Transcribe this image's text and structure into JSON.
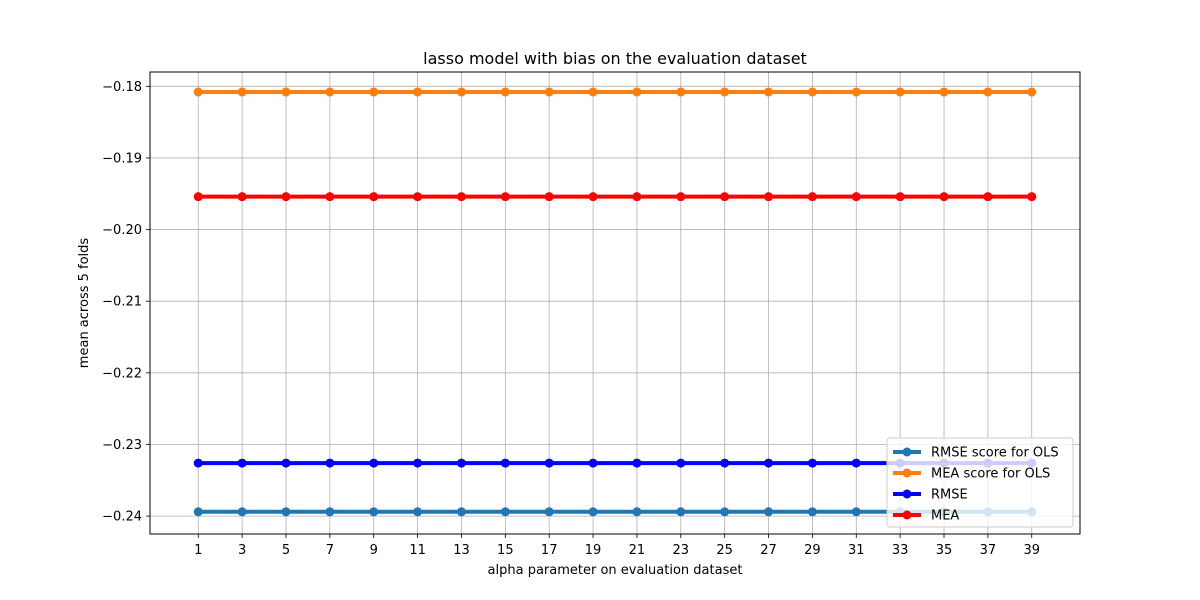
{
  "chart_data": {
    "type": "line",
    "title": "lasso model with bias on the evaluation dataset",
    "xlabel": "alpha parameter on evaluation dataset",
    "ylabel": "mean across 5 folds",
    "x": [
      1,
      3,
      5,
      7,
      9,
      11,
      13,
      15,
      17,
      19,
      21,
      23,
      25,
      27,
      29,
      31,
      33,
      35,
      37,
      39
    ],
    "x_ticks": [
      "1",
      "3",
      "5",
      "7",
      "9",
      "11",
      "13",
      "15",
      "17",
      "19",
      "21",
      "23",
      "25",
      "27",
      "29",
      "31",
      "33",
      "35",
      "37",
      "39"
    ],
    "ylim": [
      -0.2425,
      -0.178
    ],
    "y_ticks": [
      -0.18,
      -0.19,
      -0.2,
      -0.21,
      -0.22,
      -0.23,
      -0.24
    ],
    "y_tick_labels": [
      "−0.18",
      "−0.19",
      "−0.20",
      "−0.21",
      "−0.22",
      "−0.23",
      "−0.24"
    ],
    "grid": true,
    "legend_position": "bottom-right",
    "series": [
      {
        "name": "RMSE score for OLS",
        "color": "#1f77b4",
        "values": [
          -0.2394,
          -0.2394,
          -0.2394,
          -0.2394,
          -0.2394,
          -0.2394,
          -0.2394,
          -0.2394,
          -0.2394,
          -0.2394,
          -0.2394,
          -0.2394,
          -0.2394,
          -0.2394,
          -0.2394,
          -0.2394,
          -0.2394,
          -0.2394,
          -0.2394,
          -0.2394
        ]
      },
      {
        "name": "MEA score for OLS",
        "color": "#ff7f0e",
        "values": [
          -0.1808,
          -0.1808,
          -0.1808,
          -0.1808,
          -0.1808,
          -0.1808,
          -0.1808,
          -0.1808,
          -0.1808,
          -0.1808,
          -0.1808,
          -0.1808,
          -0.1808,
          -0.1808,
          -0.1808,
          -0.1808,
          -0.1808,
          -0.1808,
          -0.1808,
          -0.1808
        ]
      },
      {
        "name": "RMSE",
        "color": "#0000ff",
        "values": [
          -0.2326,
          -0.2326,
          -0.2326,
          -0.2326,
          -0.2326,
          -0.2326,
          -0.2326,
          -0.2326,
          -0.2326,
          -0.2326,
          -0.2326,
          -0.2326,
          -0.2326,
          -0.2326,
          -0.2326,
          -0.2326,
          -0.2326,
          -0.2326,
          -0.2326,
          -0.2326
        ]
      },
      {
        "name": "MEA",
        "color": "#ff0000",
        "values": [
          -0.1954,
          -0.1954,
          -0.1954,
          -0.1954,
          -0.1954,
          -0.1954,
          -0.1954,
          -0.1954,
          -0.1954,
          -0.1954,
          -0.1954,
          -0.1954,
          -0.1954,
          -0.1954,
          -0.1954,
          -0.1954,
          -0.1954,
          -0.1954,
          -0.1954,
          -0.1954
        ]
      }
    ]
  }
}
